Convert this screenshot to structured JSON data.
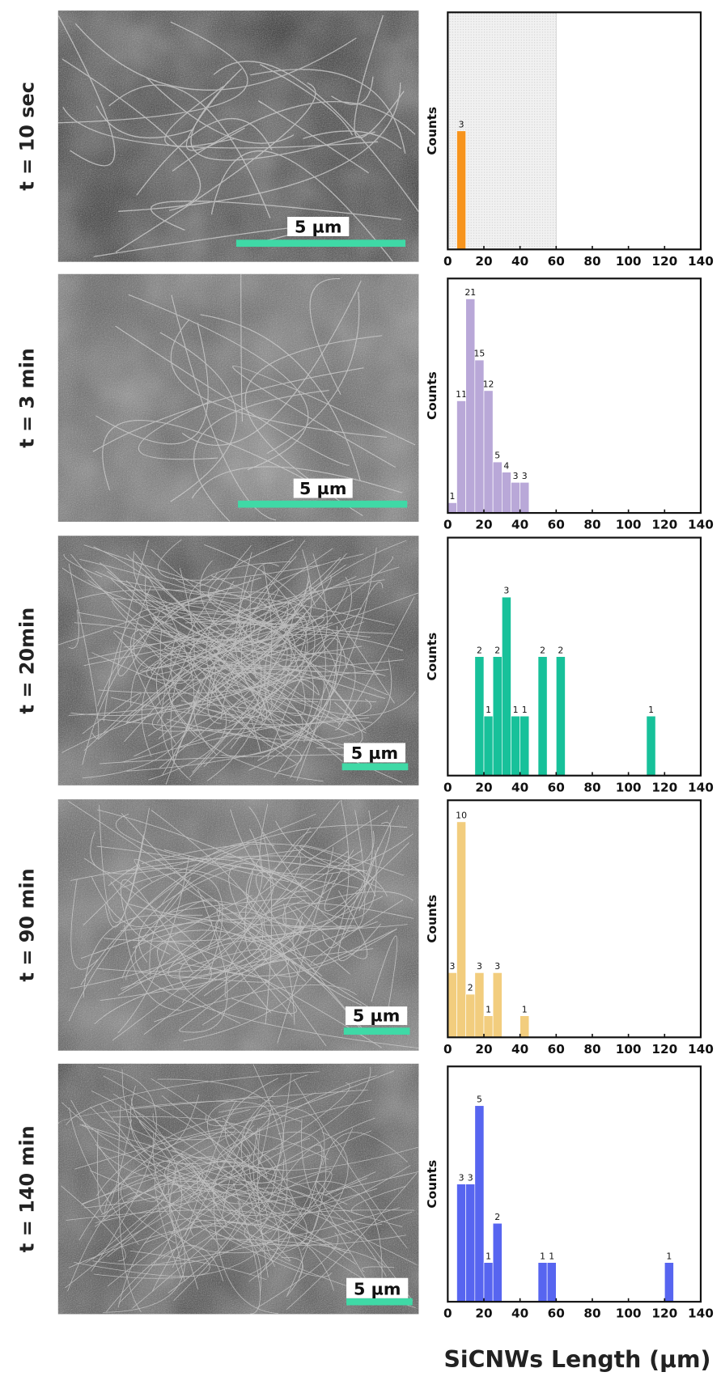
{
  "x_axis_label": "SiCNWs Length (µm)",
  "chart_data": [
    {
      "type": "histogram",
      "panel_label": "t = 10 sec",
      "scale_bar_label": "5 µm",
      "ylabel": "Counts",
      "bins": [
        5,
        10
      ],
      "counts": [
        3
      ],
      "color": "#f7941d",
      "xlim": [
        0,
        140
      ],
      "xticks": [
        0,
        20,
        40,
        60,
        80,
        100,
        120,
        140
      ],
      "ylim": [
        0,
        6
      ],
      "shaded_range": [
        0,
        60
      ]
    },
    {
      "type": "histogram",
      "panel_label": "t = 3 min",
      "scale_bar_label": "5 µm",
      "ylabel": "Counts",
      "bins": [
        0,
        5,
        10,
        15,
        20,
        25,
        30,
        35,
        40,
        45
      ],
      "counts": [
        1,
        11,
        21,
        15,
        12,
        5,
        4,
        3,
        3
      ],
      "color": "#b9a8d8",
      "xlim": [
        0,
        140
      ],
      "xticks": [
        0,
        20,
        40,
        60,
        80,
        100,
        120,
        140
      ],
      "ylim": [
        0,
        23
      ]
    },
    {
      "type": "histogram",
      "panel_label": "t = 20min",
      "scale_bar_label": "5 µm",
      "ylabel": "Counts",
      "bins": [
        15,
        20,
        25,
        30,
        35,
        40,
        45,
        50,
        55,
        60,
        65,
        70,
        75,
        80,
        85,
        90,
        95,
        100,
        105,
        110,
        115
      ],
      "counts": [
        2,
        1,
        2,
        3,
        1,
        1,
        0,
        2,
        0,
        2,
        0,
        0,
        0,
        0,
        0,
        0,
        0,
        0,
        0,
        1
      ],
      "color": "#17c19a",
      "xlim": [
        0,
        140
      ],
      "xticks": [
        0,
        20,
        40,
        60,
        80,
        100,
        120,
        140
      ],
      "ylim": [
        0,
        4
      ]
    },
    {
      "type": "histogram",
      "panel_label": "t = 90 min",
      "scale_bar_label": "5 µm",
      "ylabel": "Counts",
      "bins": [
        0,
        5,
        10,
        15,
        20,
        25,
        30,
        35,
        40,
        45
      ],
      "counts": [
        3,
        10,
        2,
        3,
        1,
        3,
        0,
        0,
        1
      ],
      "color": "#f2cd7e",
      "xlim": [
        0,
        140
      ],
      "xticks": [
        0,
        20,
        40,
        60,
        80,
        100,
        120,
        140
      ],
      "ylim": [
        0,
        11
      ]
    },
    {
      "type": "histogram",
      "panel_label": "t = 140 min",
      "scale_bar_label": "5 µm",
      "ylabel": "Counts",
      "bins": [
        5,
        10,
        15,
        20,
        25,
        30,
        35,
        40,
        45,
        50,
        55,
        60,
        65,
        70,
        75,
        80,
        85,
        90,
        95,
        100,
        105,
        110,
        115,
        120,
        125
      ],
      "counts": [
        3,
        3,
        5,
        1,
        2,
        0,
        0,
        0,
        0,
        1,
        1,
        0,
        0,
        0,
        0,
        0,
        0,
        0,
        0,
        0,
        0,
        0,
        0,
        1
      ],
      "color": "#5765f0",
      "xlim": [
        0,
        140
      ],
      "xticks": [
        0,
        20,
        40,
        60,
        80,
        100,
        120,
        140
      ],
      "ylim": [
        0,
        6
      ]
    }
  ]
}
